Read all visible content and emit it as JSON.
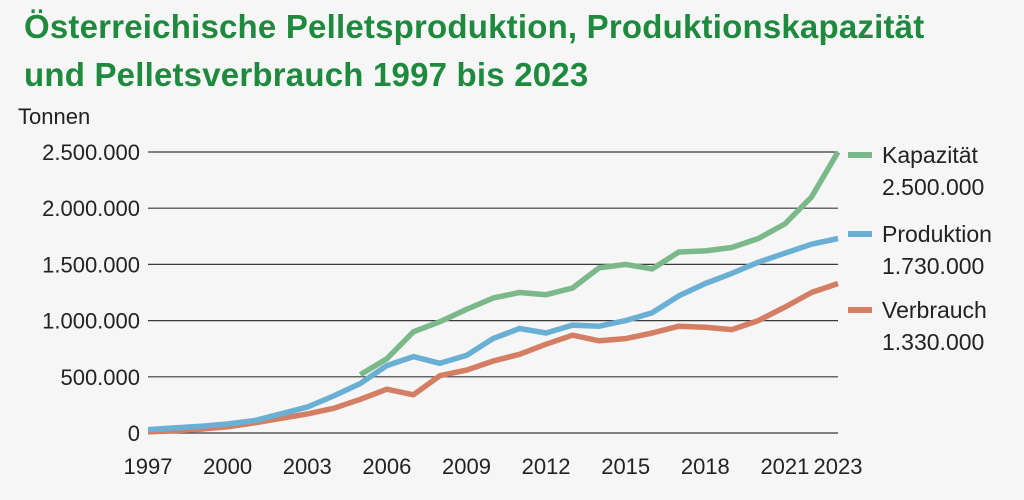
{
  "title_line1": "Österreichische Pelletsproduktion, Produktionskapazität",
  "title_line2": "und Pelletsverbrauch 1997 bis 2023",
  "colors": {
    "title": "#1e8a3d",
    "kapazitaet": "#7cb98a",
    "produktion": "#6ab0d4",
    "verbrauch": "#d47f64",
    "grid": "#3a3a3a"
  },
  "chart_data": {
    "type": "line",
    "title": "Österreichische Pelletsproduktion, Produktionskapazität und Pelletsverbrauch 1997 bis 2023",
    "ylabel": "Tonnen",
    "xlabel": "",
    "ylim": [
      0,
      2500000
    ],
    "xlim": [
      1997,
      2023
    ],
    "yticks": [
      0,
      500000,
      1000000,
      1500000,
      2000000,
      2500000
    ],
    "ytick_labels": [
      "0",
      "500.000",
      "1.000.000",
      "1.500.000",
      "2.000.000",
      "2.500.000"
    ],
    "xticks": [
      1997,
      2000,
      2003,
      2006,
      2009,
      2012,
      2015,
      2018,
      2021,
      2023
    ],
    "xtick_labels": [
      "1997",
      "2000",
      "2003",
      "2006",
      "2009",
      "2012",
      "2015",
      "2018",
      "2021",
      "2023"
    ],
    "grid": "horizontal",
    "legend_position": "right",
    "series": [
      {
        "name": "Kapazität",
        "end_label": "2.500.000",
        "x": [
          2005,
          2006,
          2007,
          2008,
          2009,
          2010,
          2011,
          2012,
          2013,
          2014,
          2015,
          2016,
          2017,
          2018,
          2019,
          2020,
          2021,
          2022,
          2023
        ],
        "values": [
          520000,
          660000,
          900000,
          990000,
          1100000,
          1200000,
          1250000,
          1230000,
          1290000,
          1470000,
          1500000,
          1460000,
          1610000,
          1620000,
          1650000,
          1730000,
          1860000,
          2100000,
          2500000
        ]
      },
      {
        "name": "Produktion",
        "end_label": "1.730.000",
        "x": [
          1997,
          1998,
          1999,
          2000,
          2001,
          2002,
          2003,
          2004,
          2005,
          2006,
          2007,
          2008,
          2009,
          2010,
          2011,
          2012,
          2013,
          2014,
          2015,
          2016,
          2017,
          2018,
          2019,
          2020,
          2021,
          2022,
          2023
        ],
        "values": [
          30000,
          45000,
          60000,
          80000,
          110000,
          170000,
          230000,
          330000,
          440000,
          600000,
          680000,
          620000,
          690000,
          840000,
          930000,
          890000,
          960000,
          950000,
          1000000,
          1070000,
          1220000,
          1330000,
          1420000,
          1520000,
          1600000,
          1680000,
          1730000
        ]
      },
      {
        "name": "Verbrauch",
        "end_label": "1.330.000",
        "x": [
          1997,
          1998,
          1999,
          2000,
          2001,
          2002,
          2003,
          2004,
          2005,
          2006,
          2007,
          2008,
          2009,
          2010,
          2011,
          2012,
          2013,
          2014,
          2015,
          2016,
          2017,
          2018,
          2019,
          2020,
          2021,
          2022,
          2023
        ],
        "values": [
          10000,
          20000,
          35000,
          55000,
          90000,
          130000,
          170000,
          220000,
          300000,
          390000,
          340000,
          510000,
          560000,
          640000,
          700000,
          790000,
          870000,
          820000,
          840000,
          890000,
          950000,
          940000,
          920000,
          1000000,
          1120000,
          1250000,
          1330000
        ]
      }
    ]
  }
}
